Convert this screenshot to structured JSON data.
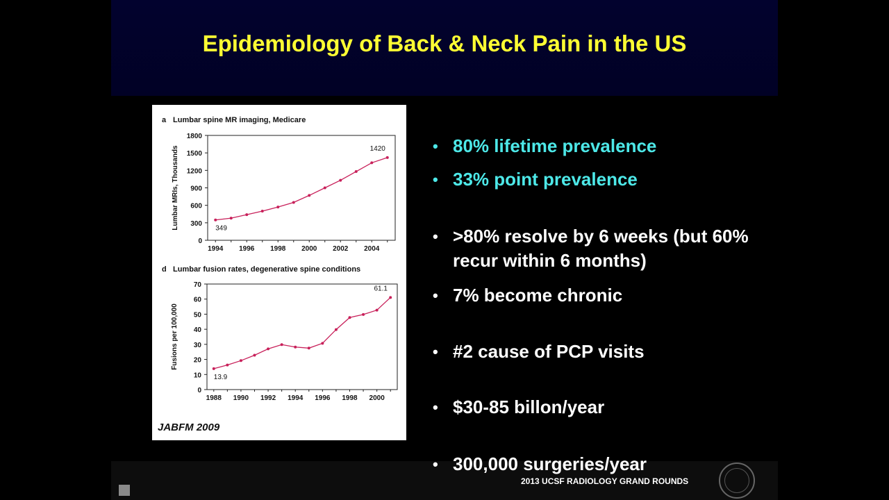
{
  "slide": {
    "title": "Epidemiology of Back & Neck Pain in the US",
    "footer": "2013 UCSF RADIOLOGY GRAND ROUNDS",
    "citation": "JABFM 2009",
    "colors": {
      "title": "#ffff33",
      "highlight": "#4de8e8",
      "text": "#ffffff",
      "title_band": "#02022e",
      "chart_line": "#c8205a"
    },
    "seal_icon": "university-seal-icon",
    "nav_icon": "slide-nav-square-icon"
  },
  "bullets": [
    {
      "text": "80% lifetime prevalence",
      "color": "#4de8e8"
    },
    {
      "text": "33% point prevalence",
      "color": "#4de8e8"
    },
    {
      "text": ">80% resolve by 6 weeks (but 60% recur within 6 months)",
      "color": "#ffffff"
    },
    {
      "text": "7% become chronic",
      "color": "#ffffff"
    },
    {
      "text": "#2 cause of PCP visits",
      "color": "#ffffff"
    },
    {
      "text": "$30-85 billon/year",
      "color": "#ffffff"
    },
    {
      "text": "300,000 surgeries/year",
      "color": "#ffffff"
    }
  ],
  "chart_data": [
    {
      "type": "line",
      "panel": "a",
      "title": "Lumbar spine MR imaging, Medicare",
      "ylabel": "Lumbar MRIs, Thousands",
      "xlabel": "",
      "x": [
        1994,
        1995,
        1996,
        1997,
        1998,
        1999,
        2000,
        2001,
        2002,
        2003,
        2004,
        2005
      ],
      "y": [
        349,
        380,
        440,
        500,
        570,
        650,
        770,
        900,
        1030,
        1180,
        1330,
        1420
      ],
      "xlim": [
        1993.5,
        2005.5
      ],
      "ylim": [
        0,
        1800
      ],
      "xticks": [
        1994,
        1996,
        1998,
        2000,
        2002,
        2004
      ],
      "yticks": [
        0,
        300,
        600,
        900,
        1200,
        1500,
        1800
      ],
      "annotations": [
        {
          "x": 1994,
          "text": "349"
        },
        {
          "x": 2005,
          "text": "1420"
        }
      ],
      "grid": false
    },
    {
      "type": "line",
      "panel": "d",
      "title": "Lumbar fusion rates, degenerative spine conditions",
      "ylabel": "Fusions per 100,000",
      "xlabel": "",
      "x": [
        1988,
        1989,
        1990,
        1991,
        1992,
        1993,
        1994,
        1995,
        1996,
        1997,
        1998,
        1999,
        2000,
        2001
      ],
      "y": [
        13.9,
        16.3,
        19.2,
        22.8,
        27,
        29.8,
        28.2,
        27.5,
        30.7,
        39.8,
        47.8,
        49.8,
        52.7,
        61.1
      ],
      "xlim": [
        1987.5,
        2001.5
      ],
      "ylim": [
        0,
        70
      ],
      "xticks": [
        1988,
        1990,
        1992,
        1994,
        1996,
        1998,
        2000
      ],
      "yticks": [
        0,
        10,
        20,
        30,
        40,
        50,
        60,
        70
      ],
      "annotations": [
        {
          "x": 1988,
          "text": "13.9"
        },
        {
          "x": 2001,
          "text": "61.1"
        }
      ],
      "grid": false
    }
  ]
}
